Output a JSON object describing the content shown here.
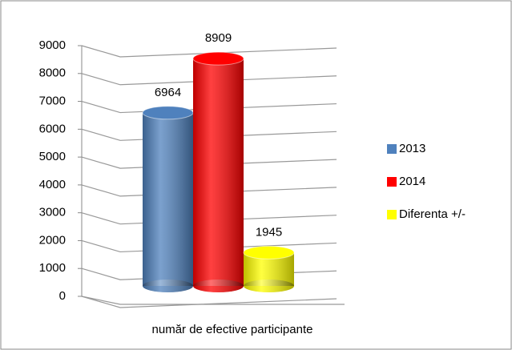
{
  "chart_data": {
    "type": "bar3d",
    "categories": [
      "număr de efective participante"
    ],
    "series": [
      {
        "name": "2013",
        "color": "#4f81bd",
        "values": [
          6964
        ]
      },
      {
        "name": "2014",
        "color": "#ff0000",
        "values": [
          8909
        ]
      },
      {
        "name": "Diferenta +/-",
        "color": "#ffff00",
        "values": [
          1945
        ]
      }
    ],
    "ylim": [
      0,
      9000
    ],
    "yticks": [
      0,
      1000,
      2000,
      3000,
      4000,
      5000,
      6000,
      7000,
      8000,
      9000
    ],
    "grid": true,
    "legend": "right"
  }
}
